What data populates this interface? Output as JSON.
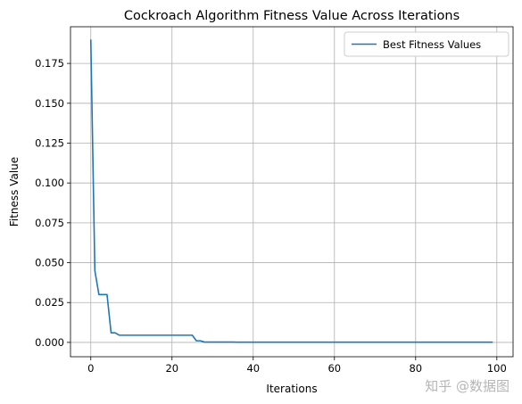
{
  "chart_data": {
    "type": "line",
    "title": "Cockroach Algorithm Fitness Value Across Iterations",
    "xlabel": "Iterations",
    "ylabel": "Fitness Value",
    "xlim": [
      -5,
      104
    ],
    "ylim": [
      -0.009,
      0.198
    ],
    "xticks": [
      0,
      20,
      40,
      60,
      80,
      100
    ],
    "yticks": [
      0.0,
      0.025,
      0.05,
      0.075,
      0.1,
      0.125,
      0.15,
      0.175
    ],
    "ytick_labels": [
      "0.000",
      "0.025",
      "0.050",
      "0.075",
      "0.100",
      "0.125",
      "0.150",
      "0.175"
    ],
    "grid": true,
    "legend": "upper-right",
    "series": [
      {
        "name": "Best Fitness Values",
        "color": "#1f77b4",
        "x": [
          0,
          1,
          2,
          3,
          4,
          5,
          6,
          7,
          8,
          9,
          10,
          11,
          12,
          13,
          14,
          15,
          16,
          17,
          18,
          19,
          20,
          21,
          22,
          23,
          24,
          25,
          26,
          27,
          28,
          29,
          30,
          31,
          32,
          33,
          34,
          35,
          36,
          37,
          38,
          39,
          40,
          41,
          42,
          43,
          44,
          45,
          46,
          47,
          48,
          49,
          50,
          51,
          52,
          53,
          54,
          55,
          56,
          57,
          58,
          59,
          60,
          61,
          62,
          63,
          64,
          65,
          66,
          67,
          68,
          69,
          70,
          71,
          72,
          73,
          74,
          75,
          76,
          77,
          78,
          79,
          80,
          81,
          82,
          83,
          84,
          85,
          86,
          87,
          88,
          89,
          90,
          91,
          92,
          93,
          94,
          95,
          96,
          97,
          98,
          99
        ],
        "y": [
          0.19,
          0.045,
          0.03,
          0.03,
          0.03,
          0.006,
          0.006,
          0.0045,
          0.0045,
          0.0045,
          0.0045,
          0.0045,
          0.0045,
          0.0045,
          0.0045,
          0.0045,
          0.0045,
          0.0045,
          0.0045,
          0.0045,
          0.0045,
          0.0045,
          0.0045,
          0.0045,
          0.0045,
          0.0045,
          0.001,
          0.001,
          0.0002,
          0.0002,
          0.0002,
          0.0002,
          0.0002,
          0.0002,
          0.0002,
          0.0002,
          0.0001,
          0.0001,
          0.0001,
          0.0001,
          0.0001,
          0.0001,
          0.0001,
          0.0001,
          0.0001,
          0.0001,
          0.0001,
          0.0001,
          0.0001,
          0.0001,
          0.0001,
          0.0001,
          0.0001,
          0.0001,
          0.0001,
          0.0001,
          0.0001,
          0.0001,
          0.0001,
          0.0001,
          0.0001,
          0.0001,
          0.0001,
          0.0001,
          0.0001,
          0.0001,
          0.0001,
          0.0001,
          0.0001,
          0.0001,
          0.0001,
          0.0001,
          0.0001,
          0.0001,
          0.0001,
          0.0001,
          0.0001,
          0.0001,
          0.0001,
          0.0001,
          0.0001,
          0.0001,
          0.0001,
          0.0001,
          0.0001,
          0.0001,
          0.0001,
          0.0001,
          0.0001,
          0.0001,
          0.0001,
          0.0001,
          0.0001,
          0.0001,
          0.0001,
          0.0001,
          0.0001,
          0.0001,
          0.0001,
          0.0001
        ]
      }
    ]
  },
  "watermark": "知乎 @数据图"
}
